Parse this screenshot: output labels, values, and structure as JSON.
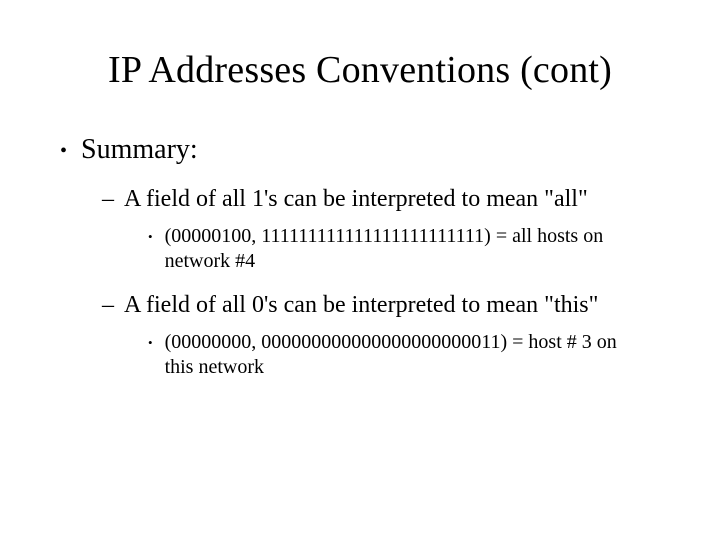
{
  "slide": {
    "title": "IP Addresses Conventions (cont)",
    "title_fontsize": 38,
    "body_fontsize_l1": 28,
    "body_fontsize_l2": 24,
    "body_fontsize_l3": 20,
    "background_color": "#ffffff",
    "text_color": "#000000",
    "font_family": "Times New Roman",
    "bullets": {
      "l1": {
        "marker": "•",
        "text": "Summary:"
      },
      "l2a": {
        "marker": "–",
        "text": "A field of all 1's can be interpreted to mean \"all\""
      },
      "l3a": {
        "marker": "•",
        "text": "(00000100, 111111111111111111111111) = all hosts on network #4"
      },
      "l2b": {
        "marker": "–",
        "text": "A field of all 0's can be interpreted to mean \"this\""
      },
      "l3b": {
        "marker": "•",
        "text": "(00000000, 000000000000000000000011) = host # 3 on this network"
      }
    }
  }
}
